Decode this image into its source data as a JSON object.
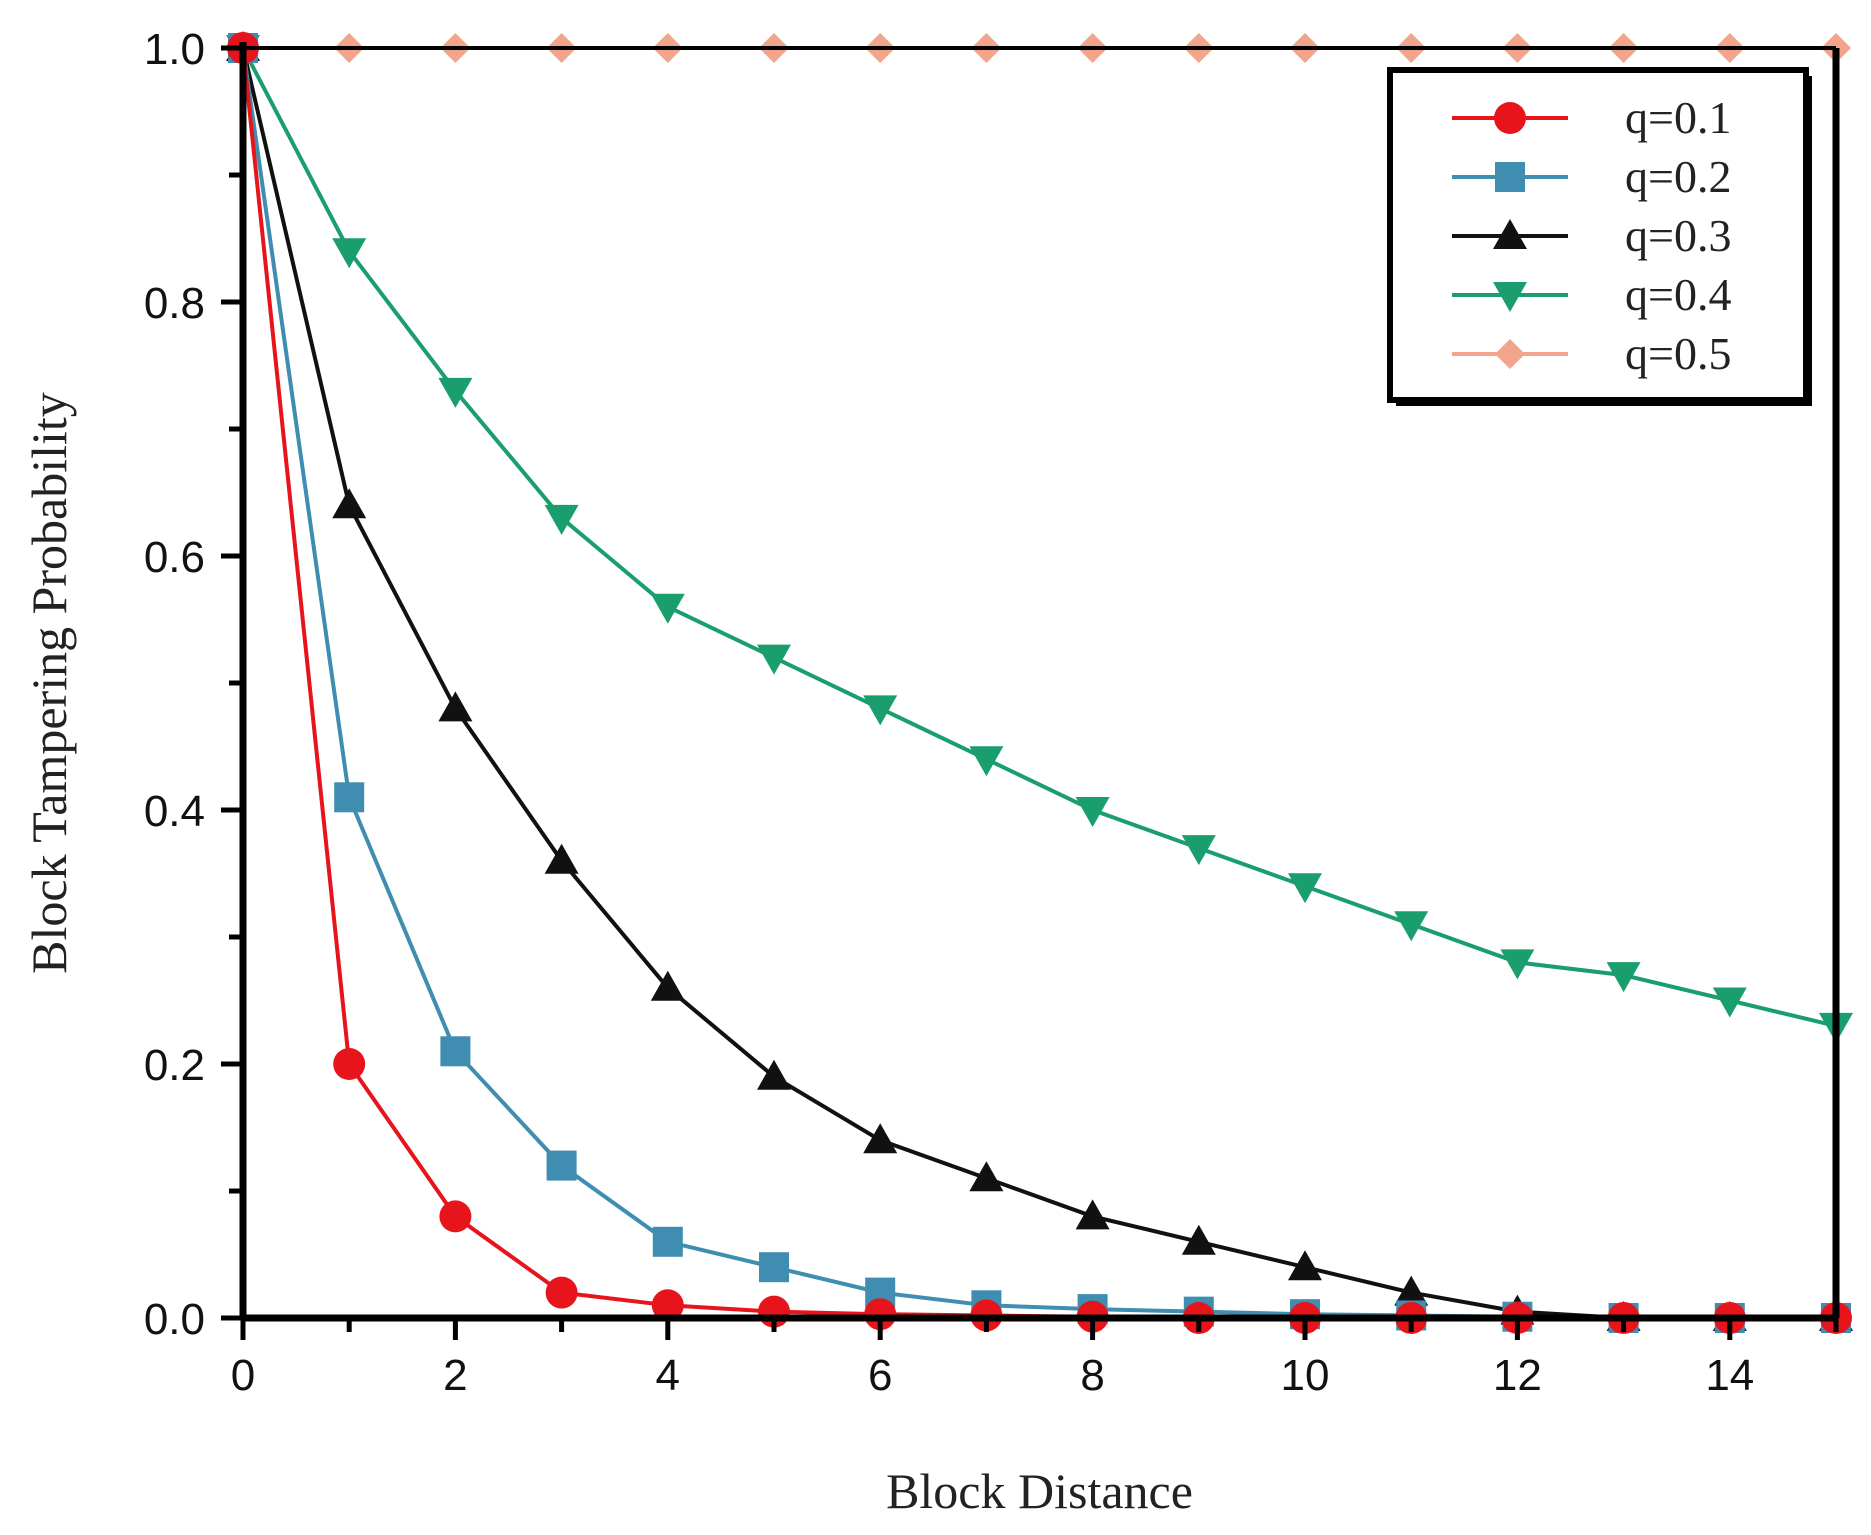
{
  "chart_data": {
    "type": "line",
    "xlabel": "Block Distance",
    "ylabel": "Block Tampering Probability",
    "xlim": [
      0,
      15
    ],
    "ylim": [
      0,
      1
    ],
    "xticks": [
      "0",
      "2",
      "4",
      "6",
      "8",
      "10",
      "12",
      "14"
    ],
    "yticks": [
      "0.0",
      "0.2",
      "0.4",
      "0.6",
      "0.8",
      "1.0"
    ],
    "x": [
      0,
      1,
      2,
      3,
      4,
      5,
      6,
      7,
      8,
      9,
      10,
      11,
      12,
      13,
      14,
      15
    ],
    "legend_position": "top-right",
    "grid": false,
    "series": [
      {
        "name": "q=0.1",
        "color": "#e8141c",
        "marker": "circle",
        "values": [
          1.0,
          0.2,
          0.08,
          0.02,
          0.01,
          0.005,
          0.003,
          0.002,
          0.001,
          0.0,
          0.0,
          0.0,
          0.0,
          0.0,
          0.0,
          0.0
        ]
      },
      {
        "name": "q=0.2",
        "color": "#3f8db0",
        "marker": "square",
        "values": [
          1.0,
          0.41,
          0.21,
          0.12,
          0.06,
          0.04,
          0.02,
          0.01,
          0.007,
          0.005,
          0.003,
          0.002,
          0.001,
          0.0,
          0.0,
          0.0
        ]
      },
      {
        "name": "q=0.3",
        "color": "#111111",
        "marker": "triangle-up",
        "values": [
          1.0,
          0.64,
          0.48,
          0.36,
          0.26,
          0.19,
          0.14,
          0.11,
          0.08,
          0.06,
          0.04,
          0.02,
          0.005,
          0.0,
          0.0,
          0.0
        ]
      },
      {
        "name": "q=0.4",
        "color": "#1a9e6e",
        "marker": "triangle-down",
        "values": [
          1.0,
          0.84,
          0.73,
          0.63,
          0.56,
          0.52,
          0.48,
          0.44,
          0.4,
          0.37,
          0.34,
          0.31,
          0.28,
          0.27,
          0.25,
          0.23
        ]
      },
      {
        "name": "q=0.5",
        "color": "#f2a58a",
        "marker": "diamond",
        "values": [
          1.0,
          1.0,
          1.0,
          1.0,
          1.0,
          1.0,
          1.0,
          1.0,
          1.0,
          1.0,
          1.0,
          1.0,
          1.0,
          1.0,
          1.0,
          1.0
        ]
      }
    ]
  }
}
